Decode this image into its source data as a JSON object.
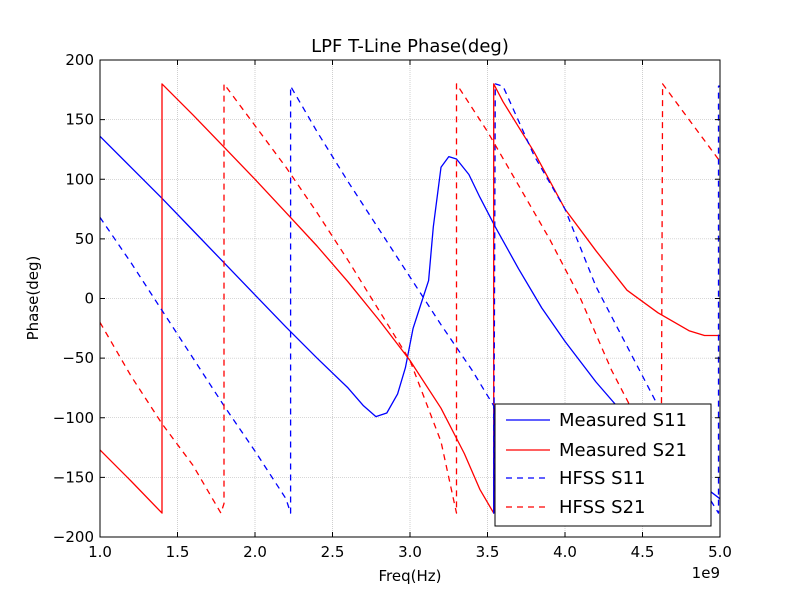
{
  "chart_data": {
    "type": "line",
    "title": "LPF T-Line Phase(deg)",
    "xlabel": "Freq(Hz)",
    "ylabel": "Phase(deg)",
    "x_scale_label": "1e9",
    "xlim": [
      1.0,
      5.0
    ],
    "ylim": [
      -200,
      200
    ],
    "x_ticks": [
      "1.0",
      "1.5",
      "2.0",
      "2.5",
      "3.0",
      "3.5",
      "4.0",
      "4.5",
      "5.0"
    ],
    "y_ticks": [
      "−200",
      "−150",
      "−100",
      "−50",
      "0",
      "50",
      "100",
      "150",
      "200"
    ],
    "grid": true,
    "legend_position": "lower-right",
    "series": [
      {
        "name": "Measured S11",
        "color": "#0000ff",
        "dash": "solid",
        "points": [
          [
            1.0,
            136
          ],
          [
            1.2,
            110
          ],
          [
            1.4,
            84
          ],
          [
            1.6,
            57
          ],
          [
            1.8,
            30
          ],
          [
            2.0,
            3
          ],
          [
            2.2,
            -24
          ],
          [
            2.4,
            -50
          ],
          [
            2.6,
            -75
          ],
          [
            2.7,
            -90
          ],
          [
            2.78,
            -99
          ],
          [
            2.85,
            -96
          ],
          [
            2.92,
            -80
          ],
          [
            2.97,
            -58
          ],
          [
            3.02,
            -25
          ],
          [
            3.07,
            -5
          ],
          [
            3.12,
            15
          ],
          [
            3.15,
            60
          ],
          [
            3.2,
            110
          ],
          [
            3.25,
            119
          ],
          [
            3.3,
            117
          ],
          [
            3.38,
            104
          ],
          [
            3.45,
            85
          ],
          [
            3.55,
            60
          ],
          [
            3.7,
            25
          ],
          [
            3.85,
            -8
          ],
          [
            4.0,
            -36
          ],
          [
            4.2,
            -70
          ],
          [
            4.4,
            -100
          ],
          [
            4.6,
            -125
          ],
          [
            4.8,
            -148
          ],
          [
            5.0,
            -168
          ]
        ]
      },
      {
        "name": "Measured S21",
        "color": "#ff0000",
        "dash": "solid",
        "points": [
          [
            1.0,
            -127
          ],
          [
            1.2,
            -153
          ],
          [
            1.4,
            -180
          ],
          [
            1.4,
            180
          ],
          [
            1.6,
            154
          ],
          [
            1.8,
            127
          ],
          [
            2.0,
            100
          ],
          [
            2.2,
            72
          ],
          [
            2.4,
            44
          ],
          [
            2.6,
            14
          ],
          [
            2.8,
            -18
          ],
          [
            3.0,
            -52
          ],
          [
            3.2,
            -92
          ],
          [
            3.35,
            -130
          ],
          [
            3.45,
            -160
          ],
          [
            3.54,
            -180
          ],
          [
            3.54,
            180
          ],
          [
            3.6,
            165
          ],
          [
            3.7,
            144
          ],
          [
            3.8,
            123
          ],
          [
            4.0,
            75
          ],
          [
            4.2,
            40
          ],
          [
            4.4,
            7
          ],
          [
            4.6,
            -12
          ],
          [
            4.8,
            -27
          ],
          [
            4.9,
            -31
          ],
          [
            5.0,
            -31
          ]
        ]
      },
      {
        "name": "HFSS S11",
        "color": "#0000ff",
        "dash": "dashed",
        "points": [
          [
            1.0,
            68
          ],
          [
            1.2,
            30
          ],
          [
            1.4,
            -10
          ],
          [
            1.6,
            -50
          ],
          [
            1.8,
            -90
          ],
          [
            2.0,
            -128
          ],
          [
            2.2,
            -168
          ],
          [
            2.23,
            -180
          ],
          [
            2.23,
            178
          ],
          [
            2.4,
            140
          ],
          [
            2.6,
            98
          ],
          [
            2.8,
            58
          ],
          [
            3.0,
            18
          ],
          [
            3.2,
            -22
          ],
          [
            3.4,
            -60
          ],
          [
            3.54,
            -90
          ],
          [
            3.54,
            -180
          ],
          [
            3.55,
            180
          ],
          [
            3.6,
            178
          ],
          [
            3.8,
            120
          ],
          [
            4.0,
            75
          ],
          [
            4.2,
            10
          ],
          [
            4.4,
            -40
          ],
          [
            4.6,
            -90
          ],
          [
            4.8,
            -140
          ],
          [
            4.99,
            -180
          ],
          [
            4.99,
            178
          ],
          [
            5.0,
            178
          ]
        ]
      },
      {
        "name": "HFSS S21",
        "color": "#ff0000",
        "dash": "dashed",
        "points": [
          [
            1.0,
            -20
          ],
          [
            1.2,
            -65
          ],
          [
            1.4,
            -105
          ],
          [
            1.6,
            -140
          ],
          [
            1.78,
            -180
          ],
          [
            1.8,
            -172
          ],
          [
            1.8,
            180
          ],
          [
            2.0,
            145
          ],
          [
            2.2,
            110
          ],
          [
            2.4,
            72
          ],
          [
            2.6,
            32
          ],
          [
            2.8,
            -10
          ],
          [
            3.0,
            -52
          ],
          [
            3.2,
            -120
          ],
          [
            3.3,
            -180
          ],
          [
            3.3,
            180
          ],
          [
            3.5,
            140
          ],
          [
            3.7,
            95
          ],
          [
            3.9,
            50
          ],
          [
            4.1,
            0
          ],
          [
            4.3,
            -60
          ],
          [
            4.5,
            -110
          ],
          [
            4.62,
            -180
          ],
          [
            4.63,
            180
          ],
          [
            4.8,
            150
          ],
          [
            5.0,
            115
          ]
        ]
      }
    ]
  }
}
